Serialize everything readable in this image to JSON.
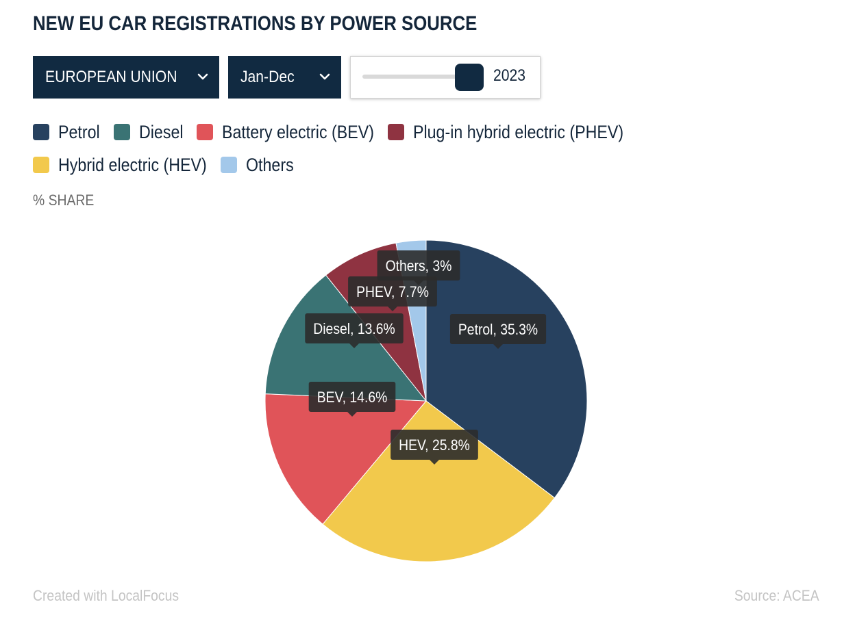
{
  "title": "NEW EU CAR REGISTRATIONS BY POWER SOURCE",
  "controls": {
    "region": "EUROPEAN UNION",
    "period": "Jan-Dec",
    "year": "2023"
  },
  "unit_label": "% SHARE",
  "footer": {
    "credit": "Created with LocalFocus",
    "source": "Source:  ACEA"
  },
  "chart_data": {
    "type": "pie",
    "title": "NEW EU CAR REGISTRATIONS BY POWER SOURCE",
    "unit": "% SHARE",
    "legend_position": "top",
    "slices": [
      {
        "name": "Petrol",
        "label": "Petrol, 35.3%",
        "value": 35.3,
        "color": "#27415f"
      },
      {
        "name": "Hybrid electric (HEV)",
        "label": "HEV, 25.8%",
        "value": 25.8,
        "color": "#f2c94c"
      },
      {
        "name": "Battery electric (BEV)",
        "label": "BEV, 14.6%",
        "value": 14.6,
        "color": "#e05459"
      },
      {
        "name": "Diesel",
        "label": "Diesel, 13.6%",
        "value": 13.6,
        "color": "#3a7374"
      },
      {
        "name": "Plug-in hybrid electric (PHEV)",
        "label": "PHEV, 7.7%",
        "value": 7.7,
        "color": "#8f3341"
      },
      {
        "name": "Others",
        "label": "Others, 3%",
        "value": 3.0,
        "color": "#a3c8ea"
      }
    ],
    "legend": [
      {
        "label": "Petrol",
        "color": "#27415f"
      },
      {
        "label": "Diesel",
        "color": "#3a7374"
      },
      {
        "label": "Battery electric (BEV)",
        "color": "#e05459"
      },
      {
        "label": "Plug-in hybrid electric (PHEV)",
        "color": "#8f3341"
      },
      {
        "label": "Hybrid electric (HEV)",
        "color": "#f2c94c"
      },
      {
        "label": "Others",
        "color": "#a3c8ea"
      }
    ]
  }
}
